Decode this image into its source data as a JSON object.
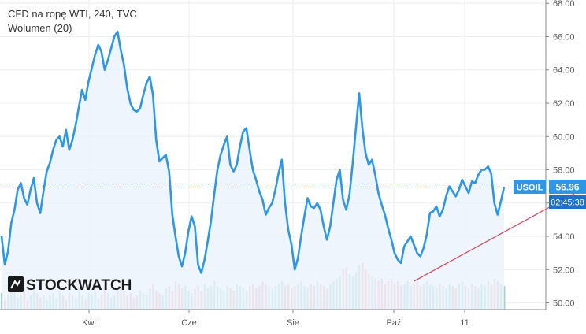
{
  "header": {
    "symbol_line": "CFD na ropę WTI, 240, TVC",
    "indicator_line": "Wolumen (20)"
  },
  "watermark": {
    "text": "STOCKWATCH"
  },
  "price_tag": {
    "symbol": "USOIL",
    "value": "56.96",
    "countdown": "02:45:38"
  },
  "colors": {
    "line": "#2f96e6",
    "fill": "#eaf3fc",
    "grid": "#eeeeee",
    "current_price_line": "#1e70c8",
    "trend_line": "#d0465a",
    "volume_up": "#9fd6c8",
    "volume_down": "#f0a8a8",
    "tag_bg": "#2f96e6",
    "countdown_bg": "#1e70c8"
  },
  "chart_data": {
    "type": "line",
    "title": "CFD na ropę WTI, 240, TVC",
    "x_tick_labels": [
      "Kwi",
      "Cze",
      "Sie",
      "Paź",
      "11"
    ],
    "y_tick_labels": [
      "50.00",
      "52.00",
      "54.00",
      "56.00",
      "58.00",
      "60.00",
      "62.00",
      "64.00",
      "66.00",
      "68.00"
    ],
    "ylim": [
      49.6,
      68.2
    ],
    "y_axis_position": "right",
    "grid": true,
    "current_price": 56.96,
    "series": [
      {
        "values": [
          54.0,
          52.3,
          53.1,
          54.8,
          55.6,
          56.8,
          57.2,
          56.3,
          55.9,
          56.8,
          57.5,
          56.0,
          55.4,
          56.7,
          57.9,
          58.4,
          59.2,
          59.8,
          60.0,
          59.4,
          60.4,
          59.2,
          59.8,
          60.7,
          61.8,
          62.8,
          62.2,
          63.3,
          64.1,
          64.9,
          65.5,
          65.1,
          64.0,
          64.6,
          65.3,
          66.0,
          66.3,
          65.2,
          64.3,
          62.9,
          62.0,
          61.6,
          61.5,
          61.7,
          62.5,
          63.2,
          63.6,
          62.5,
          59.8,
          58.5,
          58.7,
          58.9,
          57.9,
          55.3,
          54.0,
          52.8,
          52.2,
          53.0,
          54.3,
          55.2,
          54.6,
          52.3,
          51.8,
          52.6,
          53.7,
          54.9,
          56.5,
          58.0,
          58.9,
          59.5,
          60.0,
          58.3,
          57.9,
          58.3,
          59.4,
          60.3,
          60.5,
          59.2,
          58.0,
          57.4,
          56.7,
          56.2,
          55.3,
          55.7,
          56.0,
          56.8,
          57.8,
          58.6,
          56.0,
          54.4,
          53.5,
          52.0,
          52.7,
          54.0,
          55.2,
          56.3,
          55.8,
          55.7,
          56.0,
          55.6,
          54.6,
          53.8,
          54.6,
          56.0,
          57.4,
          58.0,
          56.2,
          55.6,
          56.5,
          58.4,
          60.5,
          62.6,
          60.5,
          59.0,
          58.3,
          58.6,
          57.7,
          56.6,
          55.9,
          55.3,
          54.5,
          53.8,
          53.0,
          52.6,
          52.4,
          53.4,
          53.7,
          54.0,
          53.5,
          53.0,
          52.8,
          53.3,
          54.1,
          55.4,
          55.5,
          55.8,
          55.2,
          55.6,
          56.4,
          57.0,
          56.7,
          56.4,
          56.8,
          57.4,
          57.0,
          56.6,
          57.3,
          57.2,
          57.7,
          58.0,
          58.0,
          58.2,
          57.8,
          56.0,
          55.3,
          56.1,
          56.96
        ]
      }
    ],
    "volume": {
      "name": "Wolumen (20)",
      "values": [
        0.35,
        0.2,
        0.3,
        0.5,
        0.4,
        0.25,
        0.3,
        0.45,
        0.2,
        0.3,
        0.4,
        0.35,
        0.25,
        0.3,
        0.2,
        0.3,
        0.35,
        0.25,
        0.4,
        0.3,
        0.2,
        0.35,
        0.3,
        0.25,
        0.45,
        0.3,
        0.2,
        0.35,
        0.3,
        0.4,
        0.25,
        0.3,
        0.5,
        0.35,
        0.25,
        0.3,
        0.45,
        0.6,
        0.4,
        0.3,
        0.35,
        0.25,
        0.3,
        0.4,
        0.35,
        0.3,
        0.45,
        0.55,
        0.4,
        0.35,
        0.3,
        0.45,
        0.5,
        0.4,
        0.6,
        0.55,
        0.45,
        0.5,
        0.4,
        0.35,
        0.45,
        0.5,
        0.4,
        0.55,
        0.45,
        0.5,
        0.6,
        0.5,
        0.45,
        0.4,
        0.5,
        0.45,
        0.4,
        0.55,
        0.5,
        0.45,
        0.4,
        0.5,
        0.55,
        0.45,
        0.5,
        0.6,
        0.55,
        0.5,
        0.45,
        0.5,
        0.55,
        0.6,
        0.5,
        0.55,
        0.45,
        0.5,
        0.55,
        0.6,
        0.5,
        0.45,
        0.55,
        0.5,
        0.6,
        0.55,
        0.5,
        0.45,
        0.55,
        0.6,
        0.65,
        0.7,
        0.85,
        0.9,
        0.75,
        0.7,
        0.8,
        0.95,
        1.0,
        0.85,
        0.75,
        0.7,
        0.65,
        0.6,
        0.65,
        0.55,
        0.6,
        0.65,
        0.55,
        0.6,
        0.5,
        0.55,
        0.6,
        0.5,
        0.55,
        0.6,
        0.5,
        0.55,
        0.6,
        0.55,
        0.5,
        0.45,
        0.55,
        0.5,
        0.45,
        0.55,
        0.5,
        0.45,
        0.55,
        0.6,
        0.5,
        0.45,
        0.55,
        0.5,
        0.45,
        0.55,
        0.5,
        0.6,
        0.55,
        0.65,
        0.6,
        0.55,
        0.5
      ]
    },
    "trend_line": {
      "from": {
        "index": 128,
        "value": 51.3
      },
      "to": {
        "index": 172,
        "value": 56.2
      }
    }
  }
}
